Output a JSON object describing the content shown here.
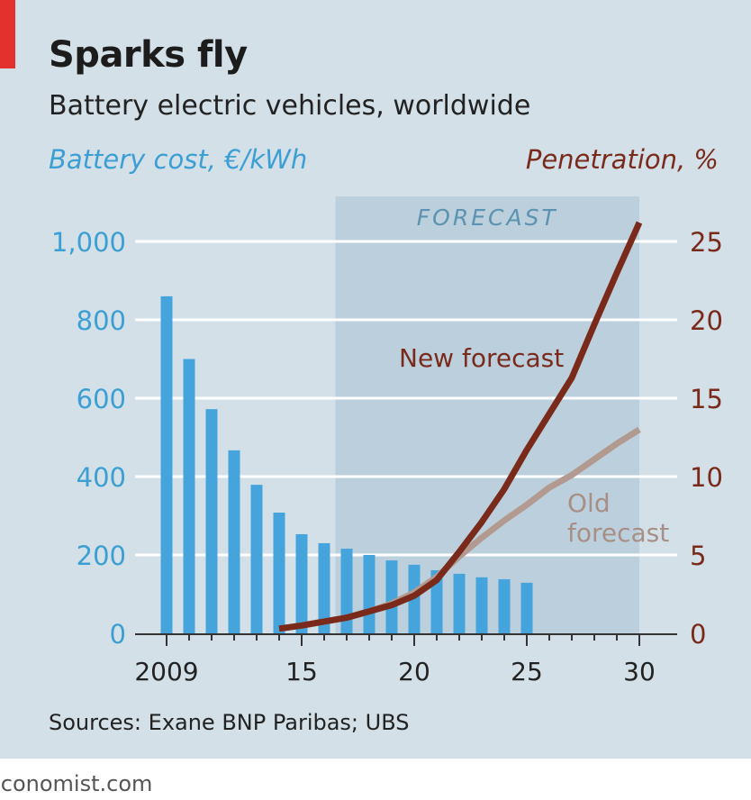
{
  "title": "Sparks fly",
  "subtitle": "Battery electric vehicles, worldwide",
  "source": "Sources: Exane BNP Paribas; UBS",
  "footer": "economist.com",
  "colors": {
    "bars": "#45a4db",
    "new_forecast": "#7a2a1a",
    "old_forecast": "#b39a91",
    "forecast_shade": "#bccfdc",
    "background": "#d3e0e8",
    "accent": "#e3312d"
  },
  "chart_data": {
    "type": "bar+line",
    "left_axis": {
      "label": "Battery cost, €/kWh",
      "range": [
        0,
        1000
      ],
      "ticks": [
        0,
        200,
        400,
        600,
        800,
        1000
      ],
      "tick_labels": [
        "0",
        "200",
        "400",
        "600",
        "800",
        "1,000"
      ]
    },
    "right_axis": {
      "label": "Penetration, %",
      "range": [
        0,
        25
      ],
      "ticks": [
        0,
        5,
        10,
        15,
        20,
        25
      ],
      "tick_labels": [
        "0",
        "5",
        "10",
        "15",
        "20",
        "25"
      ]
    },
    "x_axis": {
      "range": [
        2008,
        2031
      ],
      "ticks": [
        2009,
        2015,
        2020,
        2025,
        2030
      ],
      "tick_labels": [
        "2009",
        "15",
        "20",
        "25",
        "30"
      ]
    },
    "forecast_region": {
      "label": "FORECAST",
      "from": 2016.5,
      "to": 2030
    },
    "grid": true,
    "bars": {
      "axis": "left",
      "x": [
        2009,
        2010,
        2011,
        2012,
        2013,
        2014,
        2015,
        2016,
        2017,
        2018,
        2019,
        2020,
        2021,
        2022,
        2023,
        2024,
        2025
      ],
      "values": [
        860,
        700,
        572,
        467,
        379,
        308,
        253,
        230,
        216,
        200,
        186,
        175,
        161,
        152,
        143,
        138,
        129
      ]
    },
    "series": [
      {
        "name": "Old forecast",
        "axis": "right",
        "x": [
          2014,
          2015,
          2016,
          2017,
          2018,
          2019,
          2020,
          2021,
          2022,
          2023,
          2024,
          2025,
          2026,
          2027,
          2028,
          2029,
          2030
        ],
        "values": [
          0.3,
          0.5,
          0.75,
          1.0,
          1.4,
          1.9,
          2.6,
          3.6,
          4.9,
          6.1,
          7.2,
          8.2,
          9.3,
          10.1,
          11.1,
          12.1,
          13.0
        ]
      },
      {
        "name": "New forecast",
        "axis": "right",
        "x": [
          2014,
          2015,
          2016,
          2017,
          2018,
          2019,
          2020,
          2021,
          2022,
          2023,
          2024,
          2025,
          2026,
          2027,
          2028,
          2029,
          2030
        ],
        "values": [
          0.3,
          0.5,
          0.75,
          1.0,
          1.4,
          1.8,
          2.4,
          3.4,
          5.2,
          7.1,
          9.2,
          11.7,
          14.0,
          16.3,
          19.7,
          23.0,
          26.2
        ]
      }
    ]
  }
}
